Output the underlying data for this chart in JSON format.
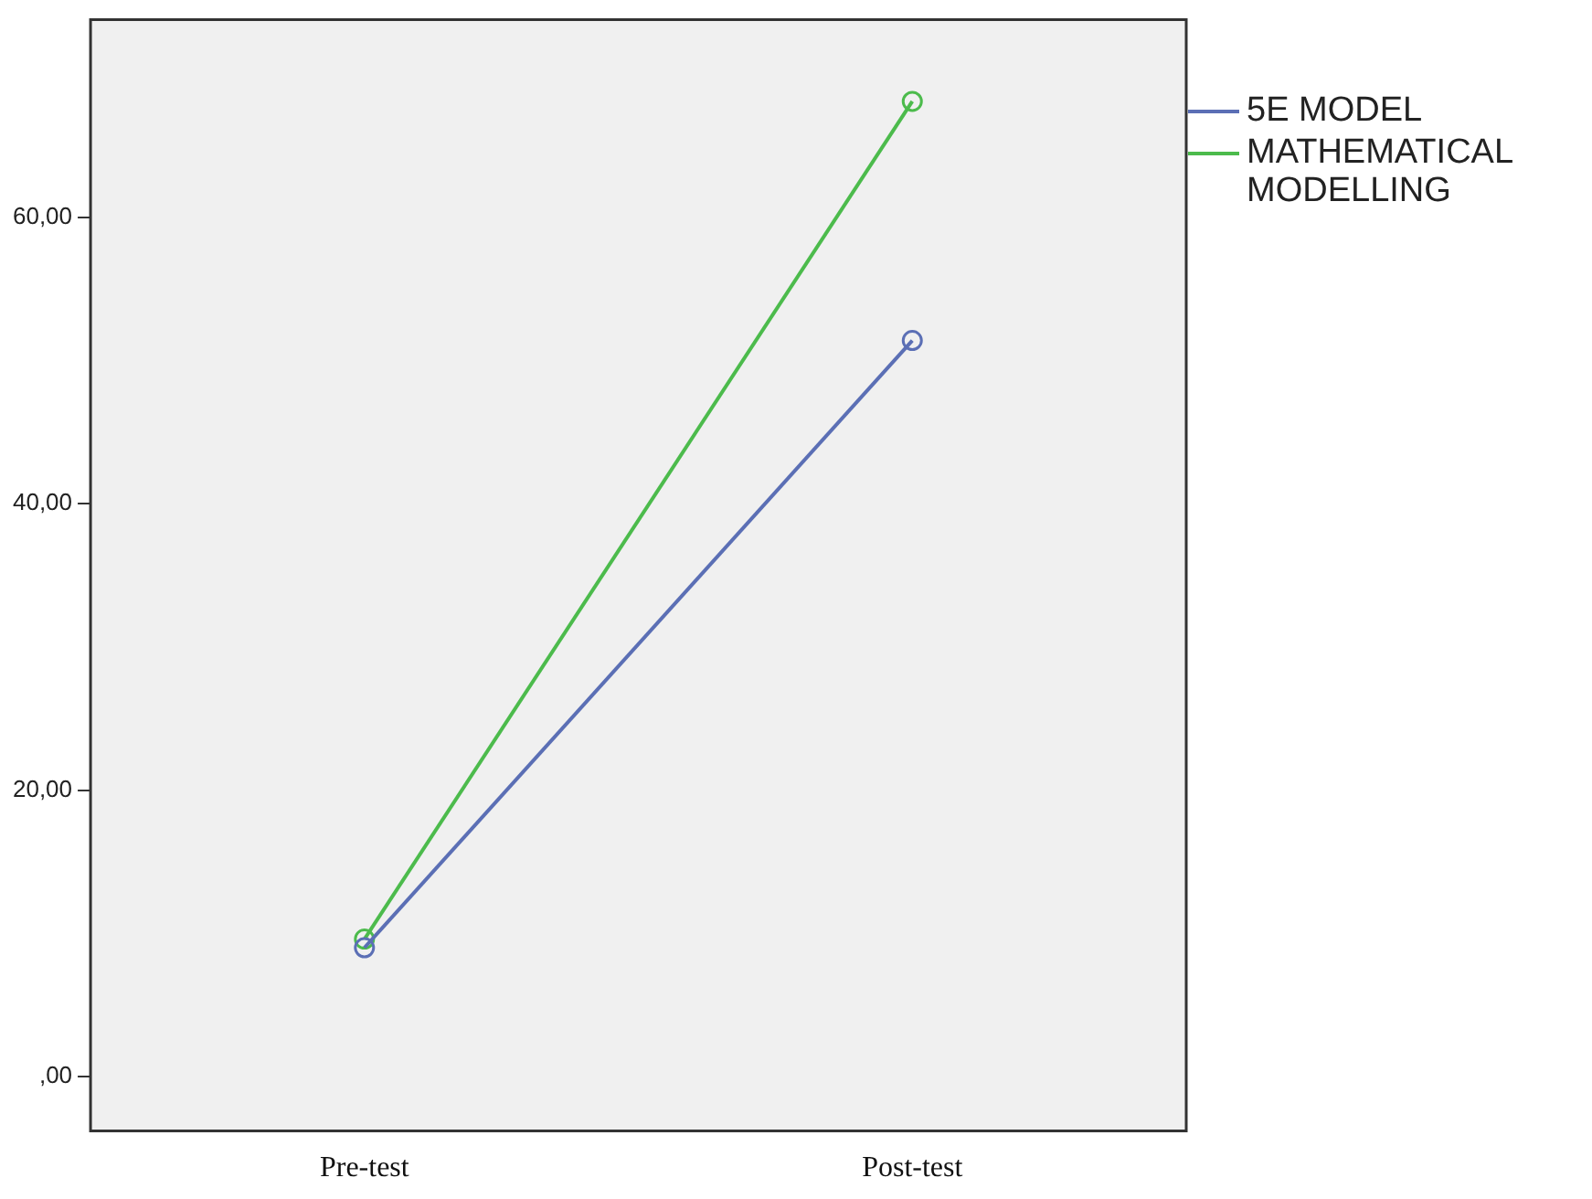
{
  "chart_data": {
    "type": "line",
    "categories": [
      "Pre-test",
      "Post-test"
    ],
    "series": [
      {
        "name": "5E MODEL",
        "color": "#5b6fb5",
        "values": [
          9.0,
          51.4
        ]
      },
      {
        "name": "MATHEMATICAL MODELLING",
        "color": "#4cbb4c",
        "values": [
          9.6,
          68.1
        ]
      }
    ],
    "ylim": [
      -3.8,
      73.8
    ],
    "yticks": [
      {
        "value": 0,
        "label": ",00"
      },
      {
        "value": 20,
        "label": "20,00"
      },
      {
        "value": 40,
        "label": "40,00"
      },
      {
        "value": 60,
        "label": "60,00"
      }
    ],
    "grid": false,
    "legend": "right",
    "marker": "circle",
    "line_style": "solid"
  }
}
